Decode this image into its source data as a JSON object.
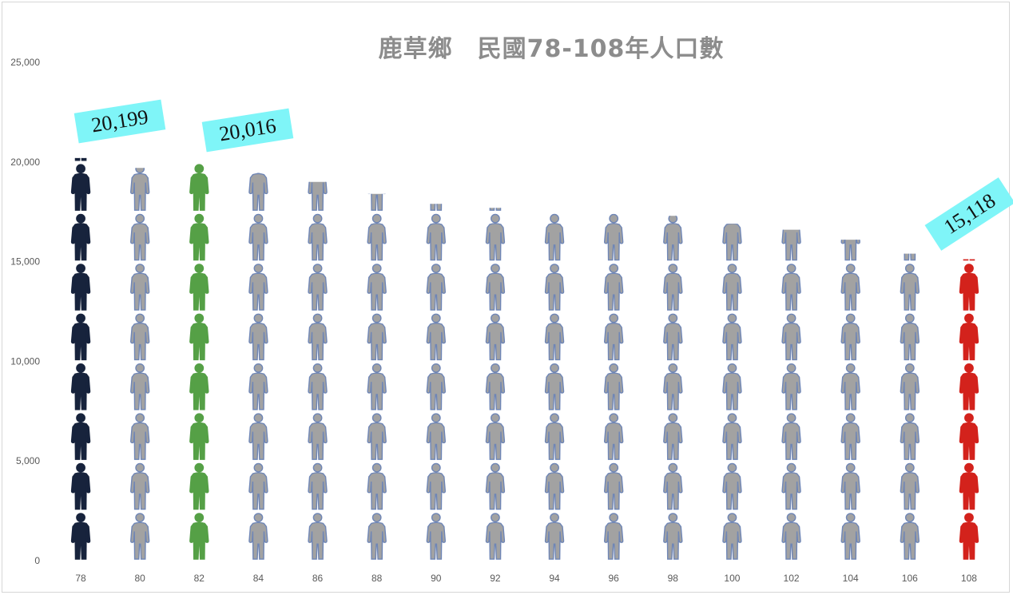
{
  "chart_data": {
    "type": "bar",
    "style": "pictograph",
    "title": "鹿草鄉　民國78-108年人口數",
    "categories": [
      "78",
      "80",
      "82",
      "84",
      "86",
      "88",
      "90",
      "92",
      "94",
      "96",
      "98",
      "100",
      "102",
      "104",
      "106",
      "108"
    ],
    "values": [
      20199,
      19700,
      20016,
      19450,
      19000,
      18400,
      17900,
      17700,
      17500,
      17400,
      17300,
      16900,
      16600,
      16100,
      15400,
      15118
    ],
    "ylim": [
      0,
      25000
    ],
    "yticks": [
      "0",
      "5,000",
      "10,000",
      "15,000",
      "20,000",
      "25,000"
    ],
    "xlabel": "",
    "ylabel": "",
    "grid": false,
    "legend": "none",
    "callouts": [
      {
        "category": "78",
        "text": "20,199"
      },
      {
        "category": "82",
        "text": "20,016"
      },
      {
        "category": "108",
        "text": "15,118"
      }
    ],
    "colors": {
      "78": "#17233c",
      "82": "#55a046",
      "108": "#d3221c",
      "default_fill": "#a2a2a2",
      "default_outline": "#6f86b6"
    }
  }
}
